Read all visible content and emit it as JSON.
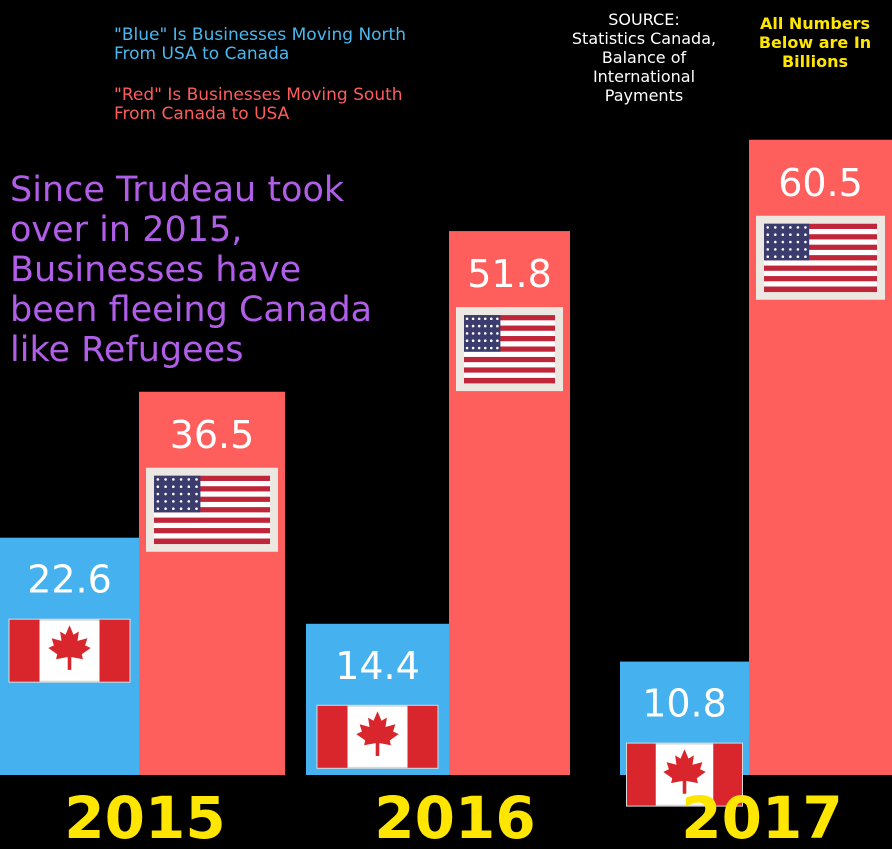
{
  "legend": {
    "blue_text": "\"Blue\" Is Businesses Moving North\nFrom USA to Canada",
    "red_text": "\"Red\" Is Businesses Moving South\nFrom Canada to USA"
  },
  "source_text": "SOURCE:\nStatistics Canada,\nBalance of\nInternational\nPayments",
  "units_note": "All Numbers\nBelow are In\nBillions",
  "headline": "Since Trudeau took\nover in 2015,\nBusinesses have\nbeen fleeing Canada\nlike Refugees",
  "colors": {
    "blue": "#45b2ef",
    "red": "#ff5f5c",
    "year": "#ffe600",
    "headline": "#b05ee8"
  },
  "icons": {
    "blue_bar_icon": "canada-flag-icon",
    "red_bar_icon": "usa-flag-icon"
  },
  "chart_data": {
    "type": "bar",
    "categories": [
      "2015",
      "2016",
      "2017"
    ],
    "series": [
      {
        "values": [
          22.6,
          14.4,
          10.8
        ],
        "color": "#45b2ef"
      },
      {
        "values": [
          36.5,
          51.8,
          60.5
        ],
        "color": "#ff5f5c"
      }
    ],
    "value_labels": [
      [
        "22.6",
        "14.4",
        "10.8"
      ],
      [
        "36.5",
        "51.8",
        "60.5"
      ]
    ],
    "title": "",
    "xlabel": "",
    "ylabel": ""
  }
}
